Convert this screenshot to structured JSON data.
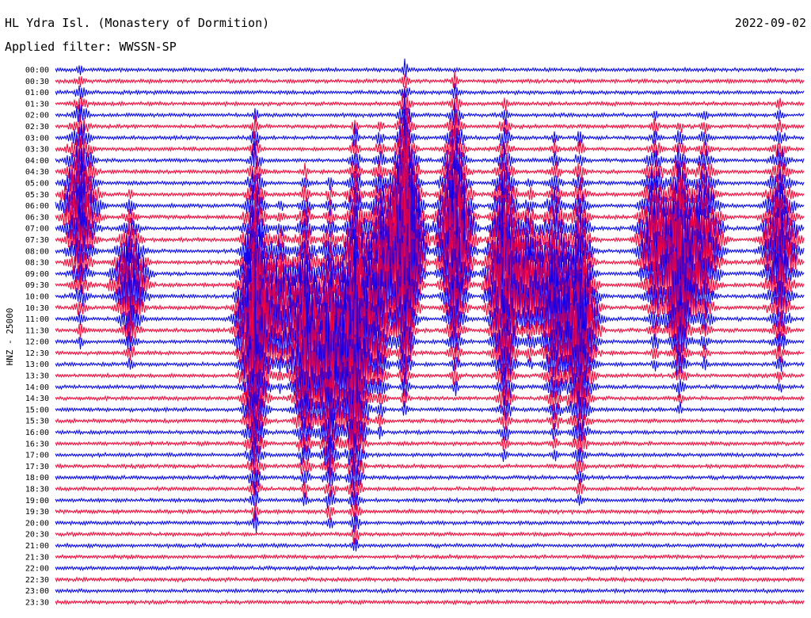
{
  "header": {
    "station": "HL Ydra Isl. (Monastery of Dormition)",
    "date": "2022-09-02",
    "filter": "Applied filter: WWSSN-SP"
  },
  "colors": {
    "trace_a": "#0000ff",
    "trace_b": "#ff0033",
    "text": "#000000"
  },
  "chart_data": {
    "type": "line",
    "ylabel": "HNZ - 25000",
    "tick_labels": [
      "00:00",
      "00:30",
      "01:00",
      "01:30",
      "02:00",
      "02:30",
      "03:00",
      "03:30",
      "04:00",
      "04:30",
      "05:00",
      "05:30",
      "06:00",
      "06:30",
      "07:00",
      "07:30",
      "08:00",
      "08:30",
      "09:00",
      "09:30",
      "10:00",
      "10:30",
      "11:00",
      "11:30",
      "12:00",
      "12:30",
      "13:00",
      "13:30",
      "14:00",
      "14:30",
      "15:00",
      "15:30",
      "16:00",
      "16:30",
      "17:00",
      "17:30",
      "18:00",
      "18:30",
      "19:00",
      "19:30",
      "20:00",
      "20:30",
      "21:00",
      "21:30",
      "22:00",
      "22:30",
      "23:00",
      "23:30"
    ],
    "trace_minutes": 30,
    "colour_cycle": [
      "trace_a",
      "trace_b"
    ],
    "events": [
      {
        "minute": 8,
        "rows": [
          4,
          40
        ],
        "amp": 1.0
      },
      {
        "minute": 12,
        "rows": [
          5,
          42
        ],
        "amp": 1.0
      },
      {
        "minute": 14,
        "rows": [
          0,
          30
        ],
        "amp": 0.9
      },
      {
        "minute": 10,
        "rows": [
          9,
          38
        ],
        "amp": 0.8
      },
      {
        "minute": 3,
        "rows": [
          11,
          26
        ],
        "amp": 0.7
      },
      {
        "minute": 18,
        "rows": [
          3,
          34
        ],
        "amp": 0.9
      },
      {
        "minute": 21,
        "rows": [
          6,
          38
        ],
        "amp": 0.8
      },
      {
        "minute": 13,
        "rows": [
          5,
          32
        ],
        "amp": 0.7
      },
      {
        "minute": 19,
        "rows": [
          10,
          26
        ],
        "amp": 0.6
      },
      {
        "minute": 25,
        "rows": [
          5,
          26
        ],
        "amp": 0.7
      },
      {
        "minute": 16,
        "rows": [
          1,
          28
        ],
        "amp": 1.0
      },
      {
        "minute": 25,
        "rows": [
          8,
          30
        ],
        "amp": 0.6
      },
      {
        "minute": 20,
        "rows": [
          6,
          34
        ],
        "amp": 0.7
      },
      {
        "minute": 11,
        "rows": [
          10,
          40
        ],
        "amp": 0.8
      },
      {
        "minute": 1,
        "rows": [
          0,
          24
        ],
        "amp": 0.6
      },
      {
        "minute": 14,
        "rows": [
          3,
          28
        ],
        "amp": 0.6
      },
      {
        "minute": 9,
        "rows": [
          12,
          28
        ],
        "amp": 0.5
      },
      {
        "minute": 24,
        "rows": [
          4,
          26
        ],
        "amp": 0.6
      },
      {
        "minute": 26,
        "rows": [
          4,
          26
        ],
        "amp": 0.6
      },
      {
        "minute": 29,
        "rows": [
          3,
          28
        ],
        "amp": 0.6
      }
    ]
  }
}
